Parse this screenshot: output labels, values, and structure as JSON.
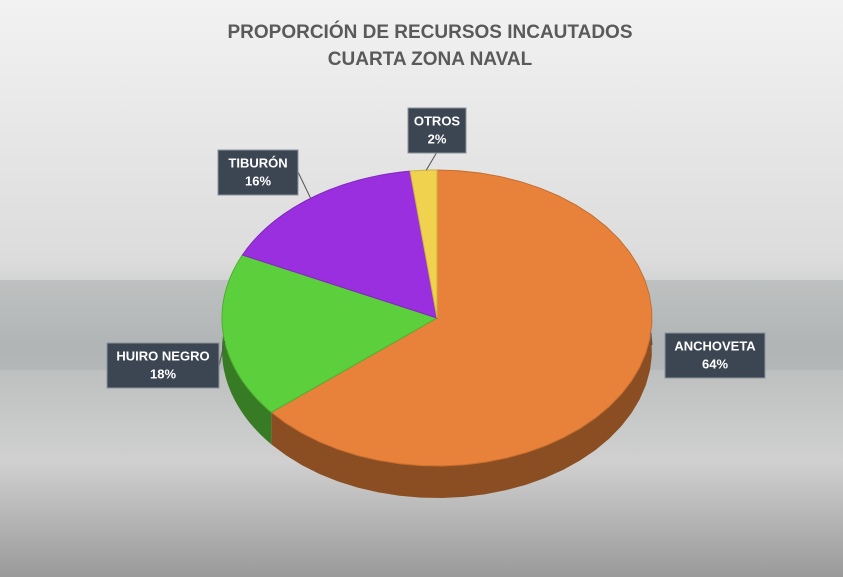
{
  "chart_data": {
    "type": "pie",
    "title": "PROPORCIÓN DE RECURSOS INCAUTADOS",
    "subtitle": "CUARTA ZONA NAVAL",
    "categories": [
      "ANCHOVETA",
      "HUIRO NEGRO",
      "TIBURÓN",
      "OTROS"
    ],
    "values": [
      64,
      18,
      16,
      2
    ],
    "value_labels": [
      "64%",
      "18%",
      "16%",
      "2%"
    ],
    "colors": [
      "#e8823a",
      "#5ccf3c",
      "#9a2fdf",
      "#f0d24e"
    ]
  }
}
